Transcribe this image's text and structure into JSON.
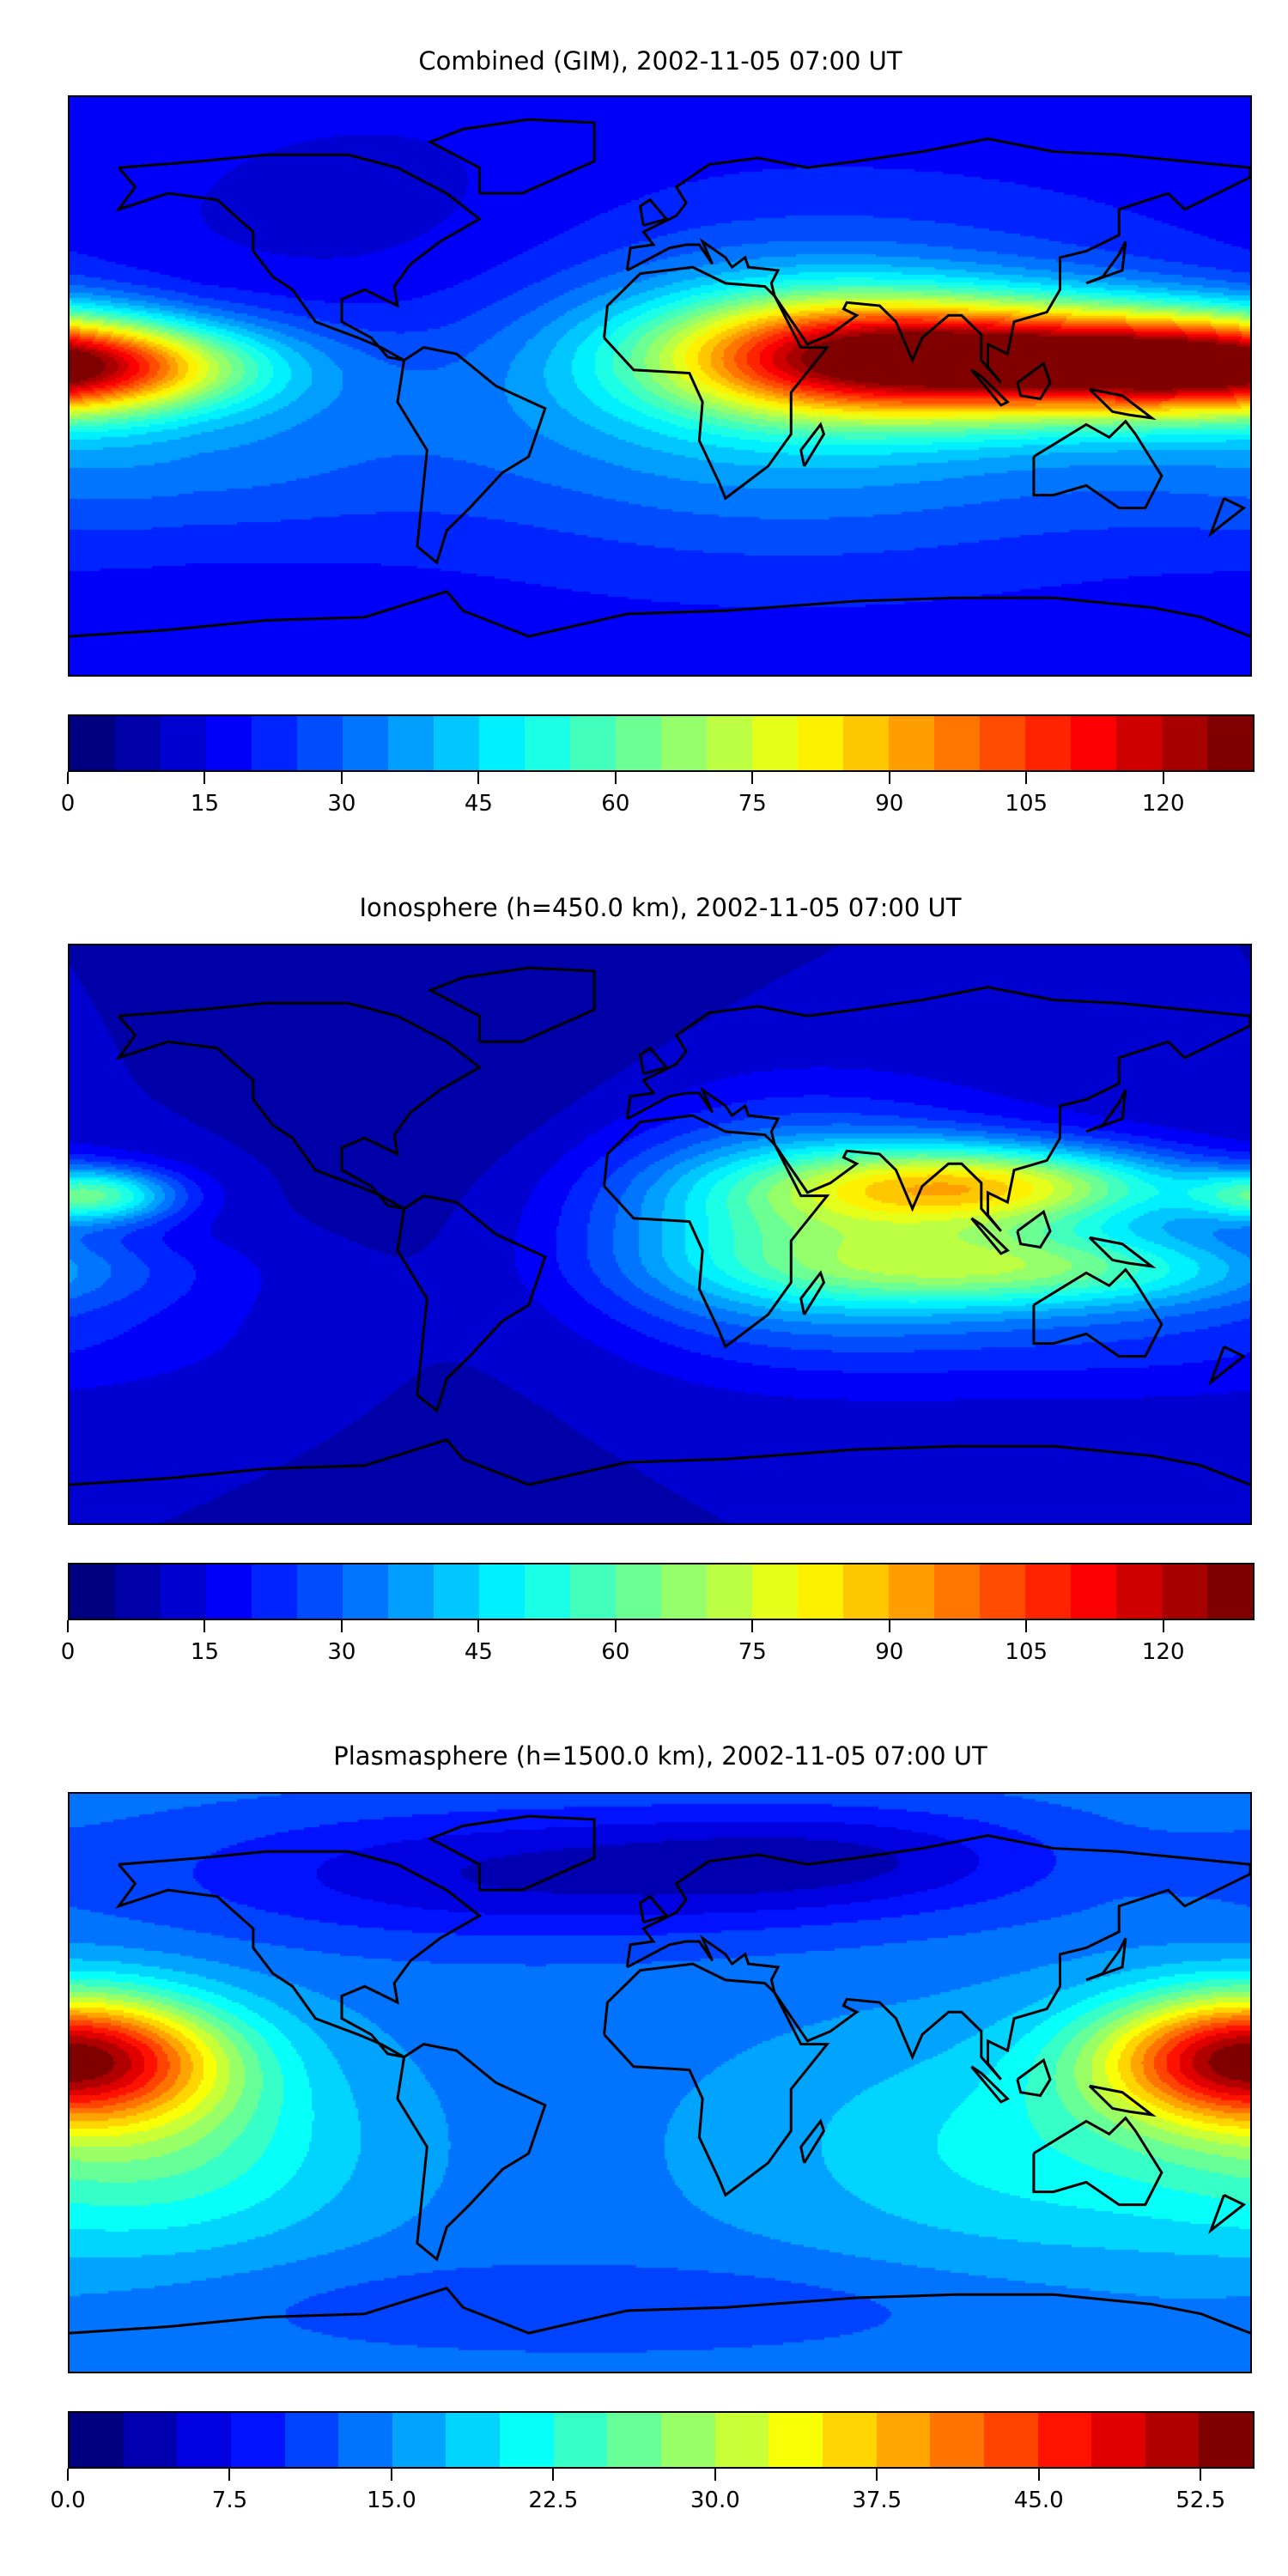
{
  "chart_data": [
    {
      "type": "heatmap",
      "title": "Combined (GIM), 2002-11-05 07:00 UT",
      "projection": "plate-carree",
      "lon_range": [
        -180,
        180
      ],
      "lat_range": [
        -90,
        90
      ],
      "colormap": "jet",
      "levels": {
        "min": 0,
        "max": 130,
        "step": 5
      },
      "ticks": [
        0,
        15,
        30,
        45,
        60,
        75,
        90,
        105,
        120
      ],
      "tick_labels": [
        "0",
        "15",
        "30",
        "45",
        "60",
        "75",
        "90",
        "105",
        "120"
      ],
      "field": {
        "base": 16,
        "features": [
          {
            "lon": 120,
            "lat": 8,
            "slon": 55,
            "slat": 12,
            "amp": 88
          },
          {
            "lon": 50,
            "lat": 10,
            "slon": 40,
            "slat": 14,
            "amp": 50
          },
          {
            "lon": -178,
            "lat": 6,
            "slon": 38,
            "slat": 10,
            "amp": 62
          },
          {
            "lon": 40,
            "lat": 0,
            "slon": 85,
            "slat": 35,
            "amp": 28
          },
          {
            "lon": -150,
            "lat": -20,
            "slon": 50,
            "slat": 20,
            "amp": 15
          },
          {
            "lon": -70,
            "lat": 40,
            "slon": 50,
            "slat": 25,
            "amp": -6
          }
        ]
      }
    },
    {
      "type": "heatmap",
      "title": "Ionosphere  (h=450.0 km), 2002-11-05 07:00 UT",
      "projection": "plate-carree",
      "lon_range": [
        -180,
        180
      ],
      "lat_range": [
        -90,
        90
      ],
      "colormap": "jet",
      "levels": {
        "min": 0,
        "max": 130,
        "step": 5
      },
      "ticks": [
        0,
        15,
        30,
        45,
        60,
        75,
        90,
        105,
        120
      ],
      "tick_labels": [
        "0",
        "15",
        "30",
        "45",
        "60",
        "75",
        "90",
        "105",
        "120"
      ],
      "field": {
        "base": 10,
        "features": [
          {
            "lon": 100,
            "lat": 15,
            "slon": 45,
            "slat": 9,
            "amp": 60
          },
          {
            "lon": 115,
            "lat": -10,
            "slon": 55,
            "slat": 9,
            "amp": 42
          },
          {
            "lon": 40,
            "lat": 2,
            "slon": 50,
            "slat": 25,
            "amp": 40
          },
          {
            "lon": -172,
            "lat": 12,
            "slon": 18,
            "slat": 6,
            "amp": 42
          },
          {
            "lon": 150,
            "lat": -30,
            "slon": 60,
            "slat": 15,
            "amp": 12
          },
          {
            "lon": -40,
            "lat": 20,
            "slon": 40,
            "slat": 40,
            "amp": -6
          }
        ]
      }
    },
    {
      "type": "heatmap",
      "title": "Plasmasphere (h=1500.0 km), 2002-11-05 07:00 UT",
      "projection": "plate-carree",
      "lon_range": [
        -180,
        180
      ],
      "lat_range": [
        -90,
        90
      ],
      "colormap": "jet",
      "levels": {
        "min": 0,
        "max": 55,
        "step": 2.5
      },
      "ticks": [
        0,
        7.5,
        15,
        22.5,
        30,
        37.5,
        45,
        52.5
      ],
      "tick_labels": [
        "0.0",
        "7.5",
        "15.0",
        "22.5",
        "30.0",
        "37.5",
        "45.0",
        "52.5"
      ],
      "field": {
        "base": 14,
        "features": [
          {
            "lon": -180,
            "lat": 8,
            "slon": 32,
            "slat": 14,
            "amp": 36
          },
          {
            "lon": -150,
            "lat": -20,
            "slon": 40,
            "slat": 22,
            "amp": 9
          },
          {
            "lon": 120,
            "lat": -20,
            "slon": 60,
            "slat": 25,
            "amp": 7
          },
          {
            "lon": -40,
            "lat": 65,
            "slon": 80,
            "slat": 15,
            "amp": -9
          },
          {
            "lon": 60,
            "lat": 70,
            "slon": 50,
            "slat": 12,
            "amp": -6
          },
          {
            "lon": -20,
            "lat": -70,
            "slon": 80,
            "slat": 10,
            "amp": -4
          }
        ]
      }
    }
  ]
}
